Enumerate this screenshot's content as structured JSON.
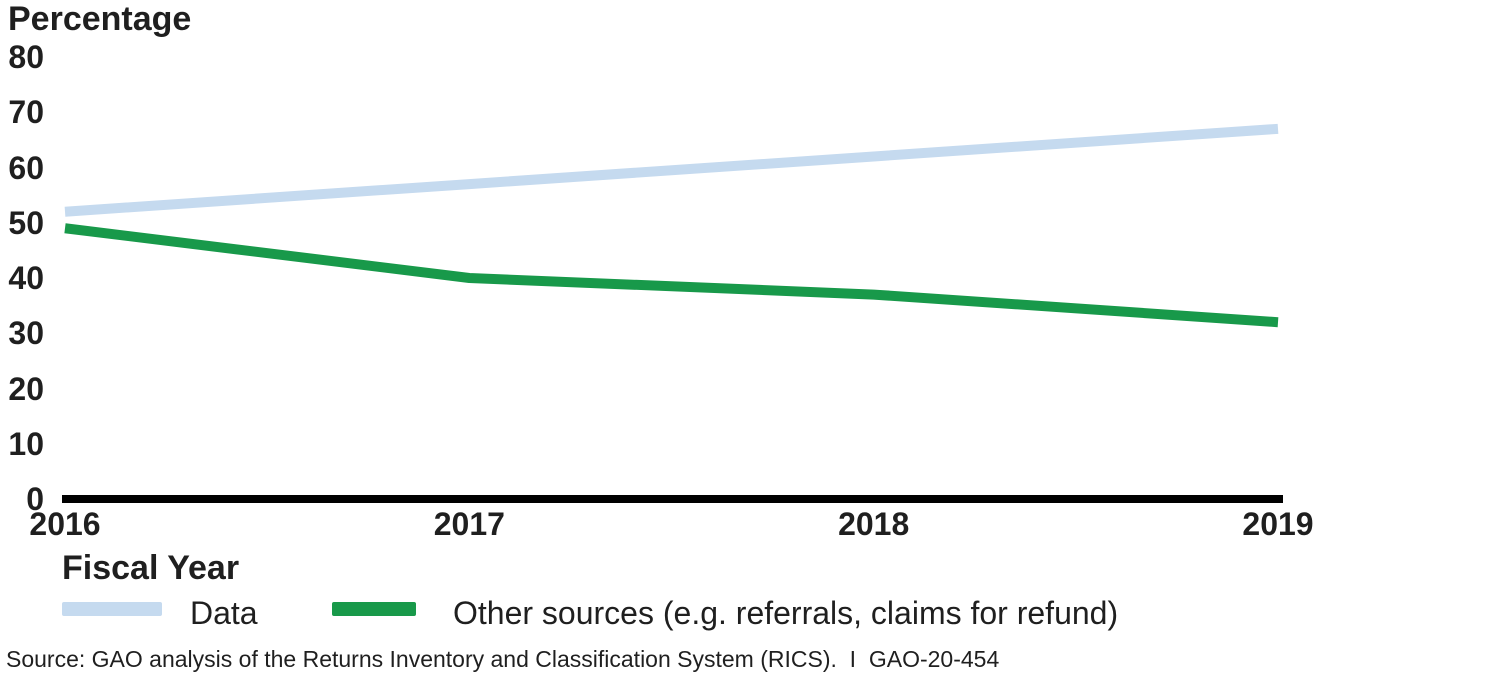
{
  "chart_data": {
    "type": "line",
    "title": "",
    "ylabel": "Percentage",
    "xlabel": "Fiscal Year",
    "x": [
      "2016",
      "2017",
      "2018",
      "2019"
    ],
    "series": [
      {
        "name": "Data",
        "values": [
          52,
          57,
          62,
          67
        ],
        "color": "#c5daef"
      },
      {
        "name": "Other sources (e.g. referrals, claims for refund)",
        "values": [
          49,
          40,
          37,
          32
        ],
        "color": "#18994a"
      }
    ],
    "ylim": [
      0,
      80
    ],
    "yticks": [
      0,
      10,
      20,
      30,
      40,
      50,
      60,
      70,
      80
    ],
    "grid": false,
    "legend_position": "bottom",
    "axis_color": "#000000"
  },
  "source_line": "Source: GAO analysis of the Returns Inventory and Classification System (RICS).  I  GAO-20-454"
}
